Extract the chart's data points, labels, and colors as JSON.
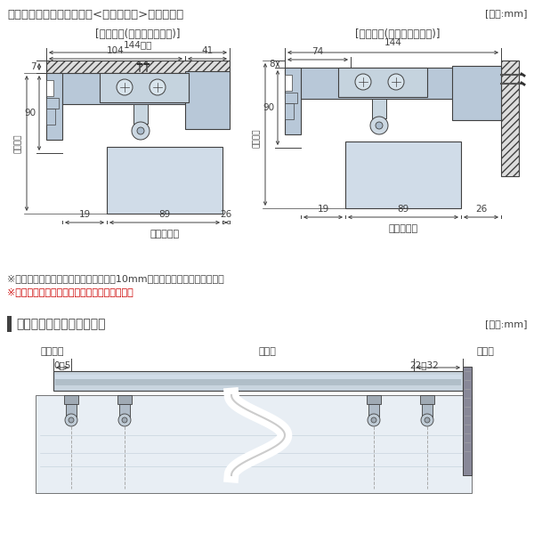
{
  "title": "ナチュラルウッドバランス<オプション>がある場合",
  "unit_label": "[単位:mm]",
  "left_subtitle": "[天井付け(ブラケット付け)]",
  "right_subtitle": "[正面付け(ブラケット付け)]",
  "note1": "※スラットと壁面・額縁等との間隔は、10mm以上を必ず設けてください。",
  "note2": "※製品高さにはブラケットの厚みを含みます。",
  "section2_title": "製品幅とスラット端部寸法",
  "section2_unit": "[単位:mm]",
  "label_left_side": "非操作側",
  "label_center": "製品幅",
  "label_right_side": "操作側",
  "dim_left": "0～5",
  "dim_right": "22～32",
  "bg_color": "#ffffff",
  "rail_color": "#b8c8d8",
  "rail_dark": "#9aaabb",
  "slat_color": "#ccd8e4",
  "hatch_bg": "#e0e0e0",
  "line_color": "#404040",
  "dim_color": "#404040",
  "red_color": "#cc0000",
  "gray_dark": "#808080",
  "gray_mid": "#aabbcc",
  "gray_light": "#dde8f0"
}
